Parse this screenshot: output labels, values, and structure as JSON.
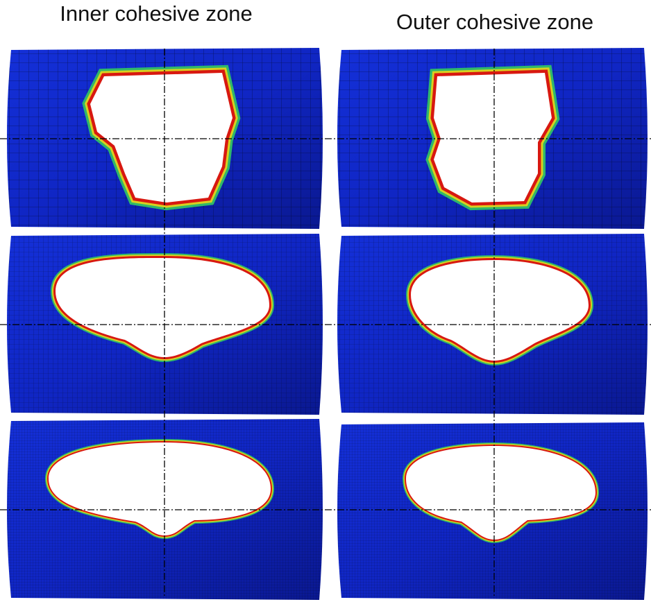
{
  "columns": [
    {
      "title": "Inner cohesive zone"
    },
    {
      "title": "Outer cohesive zone"
    }
  ]
}
